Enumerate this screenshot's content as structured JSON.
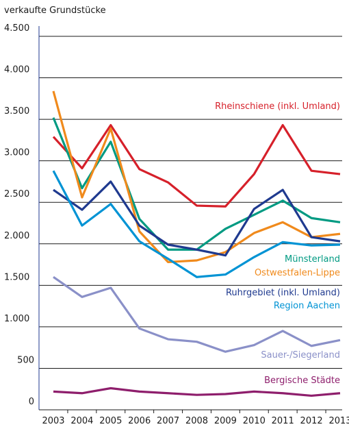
{
  "chart_data": {
    "type": "line",
    "y_label": "verkaufte Grundstücke",
    "x": [
      "2003",
      "2004",
      "2005",
      "2006",
      "2007",
      "2008",
      "2009",
      "2010",
      "2011",
      "2012",
      "2013"
    ],
    "ylim": [
      0,
      4500
    ],
    "yticks": [
      0,
      500,
      {
        "value": 1000,
        "label": "1.000"
      },
      {
        "value": 1500,
        "label": "1.500"
      },
      {
        "value": 2000,
        "label": "2.000"
      },
      {
        "value": 2500,
        "label": "2.500"
      },
      {
        "value": 3000,
        "label": "3.000"
      },
      {
        "value": 3500,
        "label": "3.500"
      },
      {
        "value": 4000,
        "label": "4.000"
      },
      {
        "value": 4500,
        "label": "4.500"
      }
    ],
    "grid": true,
    "series": [
      {
        "name": "Rheinschiene (inkl. Umland)",
        "color": "#d6202a",
        "values": [
          3290,
          2910,
          3430,
          2900,
          2740,
          2460,
          2450,
          2840,
          3430,
          2880,
          2840
        ]
      },
      {
        "name": "Münsterland",
        "color": "#009a82",
        "values": [
          3520,
          2670,
          3230,
          2300,
          1930,
          1930,
          2180,
          2350,
          2520,
          2310,
          2260
        ]
      },
      {
        "name": "Ostwestfalen-Lippe",
        "color": "#f08a1c",
        "values": [
          3840,
          2560,
          3390,
          2150,
          1780,
          1800,
          1900,
          2130,
          2260,
          2080,
          2120
        ]
      },
      {
        "name": "Ruhrgebiet (inkl. Umland)",
        "color": "#1f3a8f",
        "values": [
          2650,
          2410,
          2750,
          2220,
          1990,
          1930,
          1860,
          2420,
          2650,
          2080,
          2030
        ]
      },
      {
        "name": "Region Aachen",
        "color": "#0093d4",
        "values": [
          2880,
          2220,
          2480,
          2030,
          1820,
          1600,
          1630,
          1840,
          2020,
          1980,
          1990
        ]
      },
      {
        "name": "Sauer-/Siegerland",
        "color": "#8a90c8",
        "values": [
          1600,
          1360,
          1470,
          980,
          850,
          820,
          700,
          780,
          950,
          770,
          840
        ]
      },
      {
        "name": "Bergische Städte",
        "color": "#8e1e6c",
        "values": [
          220,
          200,
          260,
          220,
          200,
          180,
          190,
          220,
          200,
          170,
          200
        ]
      }
    ]
  }
}
